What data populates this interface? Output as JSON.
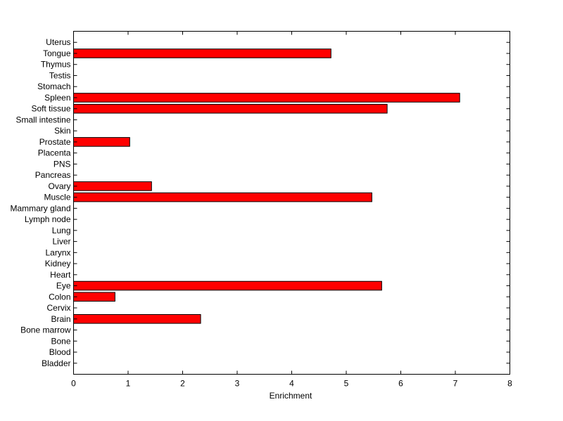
{
  "chart_data": {
    "type": "bar",
    "orientation": "horizontal",
    "title": "",
    "xlabel": "Enrichment",
    "ylabel": "",
    "xlim": [
      0,
      8
    ],
    "xticks": [
      "0",
      "1",
      "2",
      "3",
      "4",
      "5",
      "6",
      "7",
      "8"
    ],
    "grid": false,
    "bar_color": "#ff0000",
    "bar_edge_color": "#000000",
    "categories": [
      "Uterus",
      "Tongue",
      "Thymus",
      "Testis",
      "Stomach",
      "Spleen",
      "Soft tissue",
      "Small intestine",
      "Skin",
      "Prostate",
      "Placenta",
      "PNS",
      "Pancreas",
      "Ovary",
      "Muscle",
      "Mammary gland",
      "Lymph node",
      "Lung",
      "Liver",
      "Larynx",
      "Kidney",
      "Heart",
      "Eye",
      "Colon",
      "Cervix",
      "Brain",
      "Bone marrow",
      "Bone",
      "Blood",
      "Bladder"
    ],
    "values": [
      0,
      4.72,
      0,
      0,
      0,
      7.08,
      5.75,
      0,
      0,
      1.03,
      0,
      0,
      0,
      1.43,
      5.47,
      0,
      0,
      0,
      0,
      0,
      0,
      0,
      5.65,
      0.76,
      0,
      2.33,
      0,
      0,
      0,
      0
    ]
  }
}
